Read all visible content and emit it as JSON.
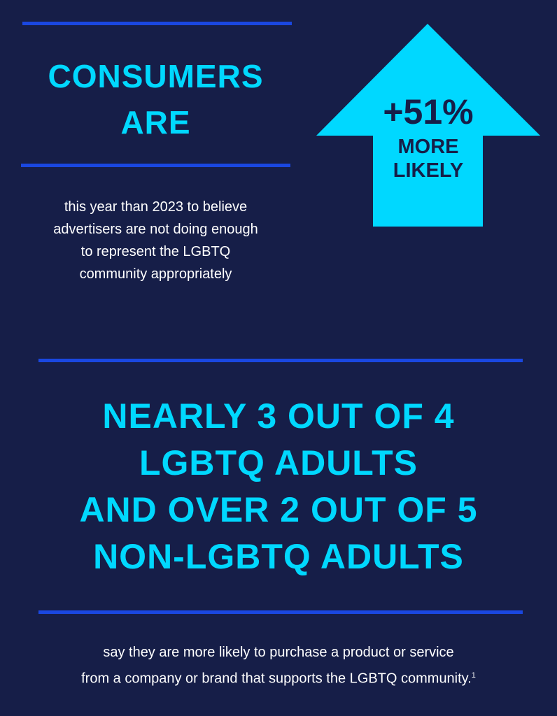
{
  "colors": {
    "background": "#161e48",
    "accent": "#00d8ff",
    "rule": "#1a47e0",
    "text": "#ffffff"
  },
  "stat1": {
    "headline": [
      "CONSUMERS",
      "ARE"
    ],
    "arrow": {
      "icon": "up-arrow-icon",
      "value": "+51%",
      "label": [
        "MORE",
        "LIKELY"
      ]
    },
    "description": [
      "this year than 2023 to believe",
      "advertisers are not doing enough",
      "to represent the LGBTQ",
      "community appropriately"
    ]
  },
  "stat2": {
    "headline": [
      "NEARLY 3 OUT OF 4",
      "LGBTQ ADULTS",
      "AND OVER 2 OUT OF 5",
      "NON-LGBTQ ADULTS"
    ],
    "description": [
      "say they are more likely to purchase a product or service",
      "from a company or brand that supports the LGBTQ community."
    ],
    "footnote": "1"
  }
}
